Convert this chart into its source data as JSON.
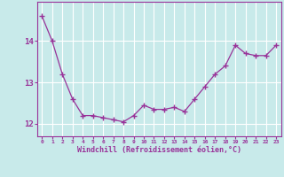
{
  "x": [
    0,
    1,
    2,
    3,
    4,
    5,
    6,
    7,
    8,
    9,
    10,
    11,
    12,
    13,
    14,
    15,
    16,
    17,
    18,
    19,
    20,
    21,
    22,
    23
  ],
  "y": [
    14.6,
    14.0,
    13.2,
    12.6,
    12.2,
    12.2,
    12.15,
    12.1,
    12.05,
    12.2,
    12.45,
    12.35,
    12.35,
    12.4,
    12.3,
    12.6,
    12.9,
    13.2,
    13.4,
    13.9,
    13.7,
    13.65,
    13.65,
    13.9
  ],
  "line_color": "#993399",
  "marker": "+",
  "bg_color": "#c8eaea",
  "grid_color": "#aadddd",
  "xlabel": "Windchill (Refroidissement éolien,°C)",
  "xlabel_color": "#993399",
  "tick_color": "#993399",
  "ylim": [
    11.7,
    14.95
  ],
  "xlim": [
    -0.5,
    23.5
  ],
  "yticks": [
    12,
    13,
    14
  ],
  "xticks": [
    0,
    1,
    2,
    3,
    4,
    5,
    6,
    7,
    8,
    9,
    10,
    11,
    12,
    13,
    14,
    15,
    16,
    17,
    18,
    19,
    20,
    21,
    22,
    23
  ],
  "spine_color": "#993399",
  "font_family": "monospace"
}
